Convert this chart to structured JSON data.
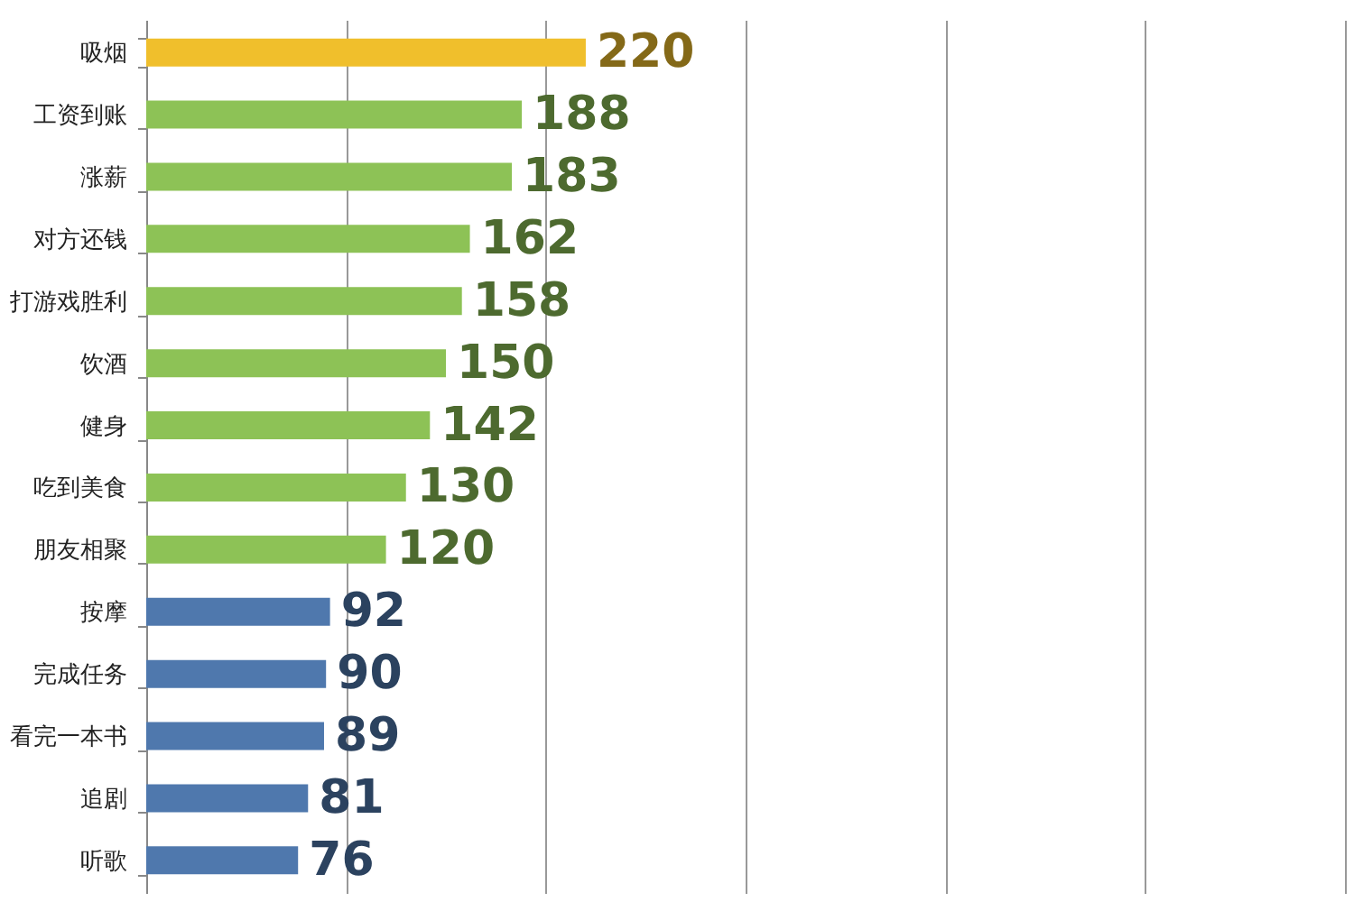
{
  "chart_data": {
    "type": "bar",
    "orientation": "horizontal",
    "categories": [
      "吸烟",
      "工资到账",
      "涨薪",
      "对方还钱",
      "打游戏胜利",
      "饮酒",
      "健身",
      "吃到美食",
      "朋友相聚",
      "按摩",
      "完成任务",
      "看完一本书",
      "追剧",
      "听歌"
    ],
    "values": [
      220,
      188,
      183,
      162,
      158,
      150,
      142,
      130,
      120,
      92,
      90,
      89,
      81,
      76
    ],
    "colors": [
      "#f0bf2c",
      "#8dc256",
      "#8dc256",
      "#8dc256",
      "#8dc256",
      "#8dc256",
      "#8dc256",
      "#8dc256",
      "#8dc256",
      "#4f78ad",
      "#4f78ad",
      "#4f78ad",
      "#4f78ad",
      "#4f78ad"
    ],
    "data_labels": true,
    "xlim": [
      0,
      600
    ],
    "xticks": [
      {
        "value": 0,
        "label": null
      },
      {
        "value": 100,
        "label": null
      },
      {
        "value": 200,
        "label": null
      },
      {
        "value": 300,
        "label": null
      },
      {
        "value": 400,
        "label": null
      },
      {
        "value": 500,
        "label": null
      },
      {
        "value": 600,
        "label": null
      }
    ],
    "grid": "x",
    "tick_labels": "y"
  }
}
